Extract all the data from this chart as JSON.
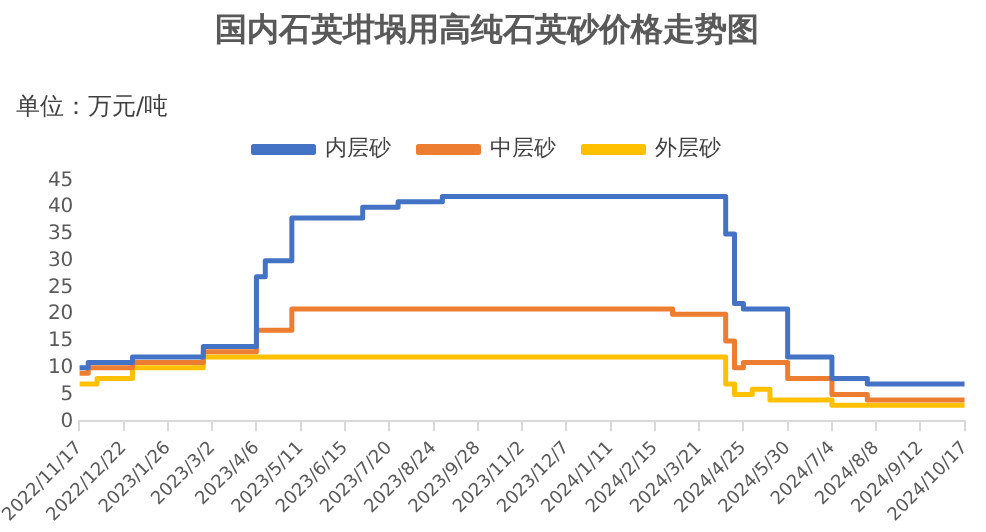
{
  "chart_data": {
    "type": "step",
    "title": "国内石英坩埚用高纯石英砂价格走势图",
    "annotations": [
      "单位：万元/吨"
    ],
    "series": [
      {
        "name": "内层砂",
        "color": "#4472c4",
        "x": [
          "2022-11-17",
          "2022-11-24",
          "2022-12-29",
          "2023-02-23",
          "2023-04-06",
          "2023-04-13",
          "2023-05-04",
          "2023-06-29",
          "2023-07-27",
          "2023-08-31",
          "2024-04-11",
          "2024-04-18",
          "2024-04-25",
          "2024-05-30",
          "2024-07-04",
          "2024-08-01",
          "2024-10-17"
        ],
        "values": [
          10,
          11,
          12,
          14,
          27,
          30,
          38,
          40,
          41,
          42,
          35,
          22,
          21,
          12,
          8,
          7,
          7
        ]
      },
      {
        "name": "中层砂",
        "color": "#ed7d31",
        "x": [
          "2022-11-17",
          "2022-11-24",
          "2022-12-29",
          "2023-02-23",
          "2023-04-06",
          "2023-05-04",
          "2024-02-29",
          "2024-04-11",
          "2024-04-18",
          "2024-04-25",
          "2024-05-30",
          "2024-07-04",
          "2024-08-01",
          "2024-10-17"
        ],
        "values": [
          9,
          10,
          11,
          13,
          17,
          21,
          20,
          15,
          10,
          11,
          8,
          5,
          4,
          4
        ]
      },
      {
        "name": "外层砂",
        "color": "#ffc000",
        "x": [
          "2022-11-17",
          "2022-12-01",
          "2022-12-29",
          "2023-02-23",
          "2024-04-11",
          "2024-04-18",
          "2024-05-02",
          "2024-05-16",
          "2024-07-04",
          "2024-10-17"
        ],
        "values": [
          7,
          8,
          10,
          12,
          7,
          5,
          6,
          4,
          3,
          3
        ]
      }
    ],
    "xlim": [
      "2022-11-17",
      "2024-10-17"
    ],
    "xticks": [
      {
        "value": "2022-11-17",
        "label": "2022/11/17"
      },
      {
        "value": "2022-12-22",
        "label": "2022/12/22"
      },
      {
        "value": "2023-01-26",
        "label": "2023/1/26"
      },
      {
        "value": "2023-03-02",
        "label": "2023/3/2"
      },
      {
        "value": "2023-04-06",
        "label": "2023/4/6"
      },
      {
        "value": "2023-05-11",
        "label": "2023/5/11"
      },
      {
        "value": "2023-06-15",
        "label": "2023/6/15"
      },
      {
        "value": "2023-07-20",
        "label": "2023/7/20"
      },
      {
        "value": "2023-08-24",
        "label": "2023/8/24"
      },
      {
        "value": "2023-09-28",
        "label": "2023/9/28"
      },
      {
        "value": "2023-11-02",
        "label": "2023/11/2"
      },
      {
        "value": "2023-12-07",
        "label": "2023/12/7"
      },
      {
        "value": "2024-01-11",
        "label": "2024/1/11"
      },
      {
        "value": "2024-02-15",
        "label": "2024/2/15"
      },
      {
        "value": "2024-03-21",
        "label": "2024/3/21"
      },
      {
        "value": "2024-04-25",
        "label": "2024/4/25"
      },
      {
        "value": "2024-05-30",
        "label": "2024/5/30"
      },
      {
        "value": "2024-07-04",
        "label": "2024/7/4"
      },
      {
        "value": "2024-08-08",
        "label": "2024/8/8"
      },
      {
        "value": "2024-09-12",
        "label": "2024/9/12"
      },
      {
        "value": "2024-10-17",
        "label": "2024/10/17"
      }
    ],
    "ylim": [
      0,
      45
    ],
    "yticks": [
      0,
      5,
      10,
      15,
      20,
      25,
      30,
      35,
      40,
      45
    ],
    "grid": false,
    "legend": "top",
    "marker": "none",
    "line_style": "solid"
  }
}
